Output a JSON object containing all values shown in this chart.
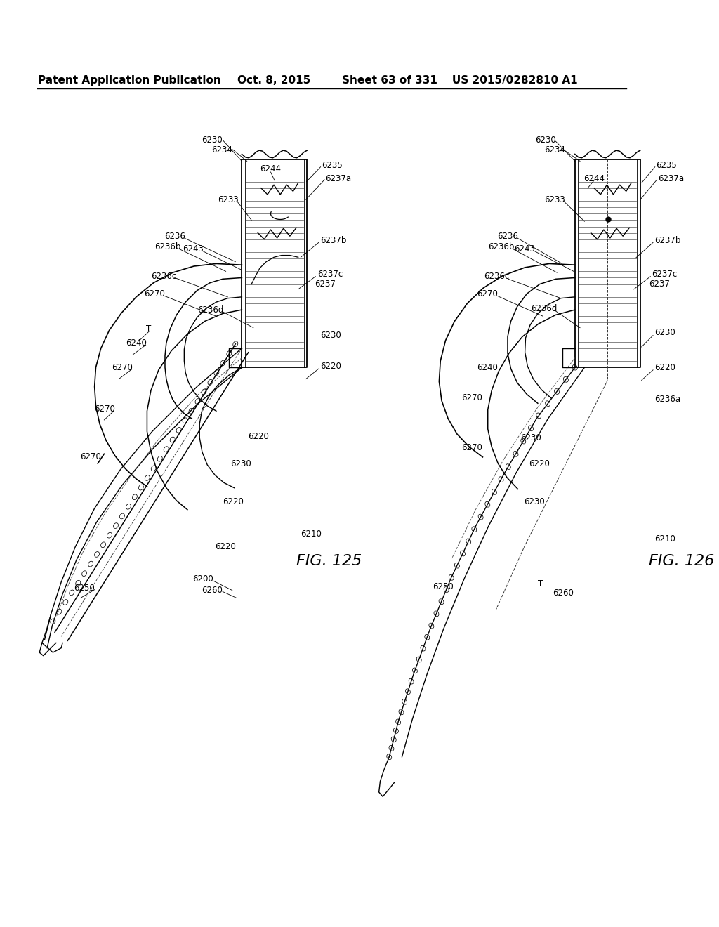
{
  "bg_color": "#ffffff",
  "header_left": "Patent Application Publication",
  "header_center": "Oct. 8, 2015",
  "header_right": "Sheet 63 of 331    US 2015/0282810 A1",
  "fig125_label": "FIG. 125",
  "fig126_label": "FIG. 126",
  "line_color": "#000000",
  "font_size_header": 11,
  "font_size_label": 8.5,
  "font_size_fig": 16
}
